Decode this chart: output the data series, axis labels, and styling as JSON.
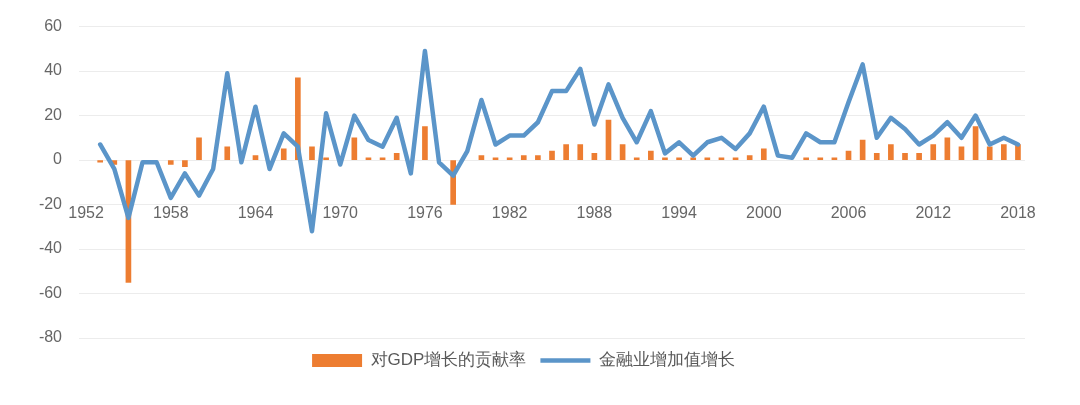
{
  "chart_data": {
    "type": "bar",
    "categories": [
      "1952",
      null,
      null,
      null,
      null,
      null,
      "1958",
      null,
      null,
      null,
      null,
      null,
      "1964",
      null,
      null,
      null,
      null,
      null,
      "1970",
      null,
      null,
      null,
      null,
      null,
      "1976",
      null,
      null,
      null,
      null,
      null,
      "1982",
      null,
      null,
      null,
      null,
      null,
      "1988",
      null,
      null,
      null,
      null,
      null,
      "1994",
      null,
      null,
      null,
      null,
      null,
      "2000",
      null,
      null,
      null,
      null,
      null,
      "2006",
      null,
      null,
      null,
      null,
      null,
      "2012",
      null,
      null,
      null,
      null,
      null,
      "2018"
    ],
    "series": [
      {
        "name": "对GDP增长的贡献率",
        "color": "#ed7d31",
        "values": [
          null,
          -1,
          -2,
          -55,
          null,
          null,
          -2,
          -3,
          10,
          null,
          6,
          null,
          2,
          null,
          5,
          37,
          6,
          1,
          null,
          10,
          1,
          1,
          3,
          null,
          15,
          null,
          -20,
          null,
          2,
          1,
          1,
          2,
          2,
          4,
          7,
          7,
          3,
          18,
          7,
          1,
          4,
          1,
          1,
          1,
          1,
          1,
          1,
          2,
          5,
          null,
          null,
          1,
          1,
          1,
          4,
          9,
          3,
          7,
          3,
          3,
          7,
          10,
          6,
          15,
          6,
          7,
          7
        ]
      },
      {
        "name": "金融业增加值增长",
        "type": "line",
        "color": "#5b95c9",
        "values": [
          null,
          7,
          -4,
          -26,
          -1,
          -1,
          -17,
          -6,
          -16,
          -4,
          39,
          -1,
          24,
          -4,
          12,
          6,
          -32,
          21,
          -2,
          20,
          9,
          6,
          19,
          -6,
          49,
          -1,
          -7,
          4,
          27,
          7,
          11,
          11,
          17,
          31,
          31,
          41,
          16,
          34,
          19,
          8,
          22,
          3,
          8,
          2,
          8,
          10,
          5,
          12,
          24,
          2,
          1,
          12,
          8,
          8,
          26,
          43,
          10,
          19,
          14,
          7,
          11,
          17,
          10,
          20,
          7,
          10,
          7
        ]
      }
    ],
    "ylim": [
      -80,
      60
    ],
    "yticks": [
      -80,
      -60,
      -40,
      -20,
      0,
      20,
      40,
      60
    ],
    "grid": "y",
    "legend": "bottom"
  }
}
